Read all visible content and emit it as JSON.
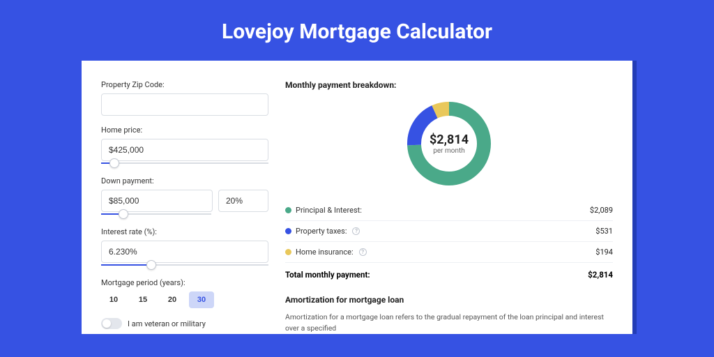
{
  "page": {
    "title": "Lovejoy Mortgage Calculator"
  },
  "form": {
    "zip": {
      "label": "Property Zip Code:",
      "value": ""
    },
    "price": {
      "label": "Home price:",
      "value": "$425,000",
      "slider_pct": 8
    },
    "down": {
      "label": "Down payment:",
      "value": "$85,000",
      "pct_value": "20%",
      "slider_pct": 20
    },
    "rate": {
      "label": "Interest rate (%):",
      "value": "6.230%",
      "slider_pct": 30
    },
    "period": {
      "label": "Mortgage period (years):",
      "options": [
        "10",
        "15",
        "20",
        "30"
      ],
      "active_index": 3
    },
    "veteran": {
      "label": "I am veteran or military",
      "on": false
    }
  },
  "breakdown": {
    "heading": "Monthly payment breakdown:",
    "donut": {
      "amount": "$2,814",
      "sub": "per month",
      "segments": [
        {
          "value": 2089,
          "color": "#4aa989"
        },
        {
          "value": 531,
          "color": "#3652e3"
        },
        {
          "value": 194,
          "color": "#e9c85b"
        }
      ],
      "radius": 50,
      "stroke": 20,
      "bg": "#ffffff"
    },
    "rows": [
      {
        "label": "Principal & Interest:",
        "color": "#4aa989",
        "value": "$2,089",
        "info": false
      },
      {
        "label": "Property taxes:",
        "color": "#3652e3",
        "value": "$531",
        "info": true
      },
      {
        "label": "Home insurance:",
        "color": "#e9c85b",
        "value": "$194",
        "info": true
      }
    ],
    "total": {
      "label": "Total monthly payment:",
      "value": "$2,814"
    }
  },
  "amort": {
    "heading": "Amortization for mortgage loan",
    "text": "Amortization for a mortgage loan refers to the gradual repayment of the loan principal and interest over a specified"
  },
  "colors": {
    "page_bg": "#3652e3",
    "card_shadow": "#233db6",
    "border": "#d9dde3",
    "active_period_bg": "#cdd6f8"
  }
}
